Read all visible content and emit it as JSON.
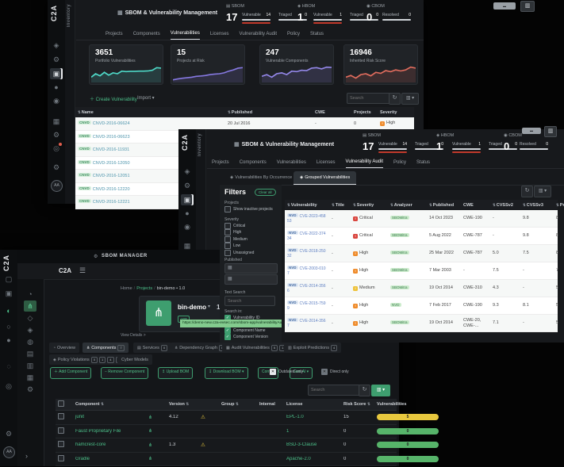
{
  "overlays": {
    "url_tooltip": "https://demo-new.c2a-evsec.com/sbom-app/vulnerabilityAudit#"
  },
  "severity_colors": {
    "Critical": "#d9453e",
    "High": "#ef8b2a",
    "Medium": "#eec23a"
  },
  "w1": {
    "logo": "C2A",
    "rail_label": "Inventory",
    "title": "SBOM & Vulnerability Management",
    "rail_icons": [
      {
        "glyph": "◈",
        "name": "shield-icon"
      },
      {
        "glyph": "⚙",
        "name": "gear-icon"
      },
      {
        "glyph": "▣",
        "name": "inventory-icon",
        "selected": true
      },
      {
        "glyph": "●",
        "name": "dot-icon"
      },
      {
        "glyph": "◉",
        "name": "lock-icon"
      },
      {
        "glyph": "▦",
        "name": "grid-icon"
      },
      {
        "glyph": "⚙",
        "name": "settings-icon"
      },
      {
        "glyph": "◎",
        "name": "pin-icon",
        "alert": true
      },
      {
        "glyph": "⚙",
        "name": "preferences-icon"
      },
      {
        "glyph": "AA",
        "name": "avatar",
        "avatar": true
      }
    ],
    "kpis": [
      {
        "name": "SBOM",
        "icon": "▤",
        "value": "17",
        "metrics": [
          {
            "label": "Vulnerable",
            "value": "14",
            "red": true
          },
          {
            "label": "Triaged",
            "value": "0"
          }
        ]
      },
      {
        "name": "HBOM",
        "icon": "◈",
        "value": "1",
        "metrics": [
          {
            "label": "Vulnerable",
            "value": "1",
            "red": true
          },
          {
            "label": "Triaged",
            "value": "0"
          }
        ]
      },
      {
        "name": "CBOM",
        "icon": "◉",
        "value": "0",
        "metrics": [
          {
            "label": "Resolved",
            "value": "0"
          }
        ]
      }
    ],
    "tabs": [
      {
        "label": "Projects"
      },
      {
        "label": "Components"
      },
      {
        "label": "Vulnerabilities",
        "active": true
      },
      {
        "label": "Licenses"
      },
      {
        "label": "Vulnerability Audit"
      },
      {
        "label": "Policy"
      },
      {
        "label": "Status"
      }
    ],
    "cards": [
      {
        "value": "3651",
        "label": "Portfolio Vulnerabilities",
        "color": "#4ed8c7",
        "spark": [
          70,
          50,
          62,
          42,
          58,
          45,
          50,
          35,
          38,
          36,
          36,
          35,
          35,
          34,
          30,
          15,
          18
        ]
      },
      {
        "value": "15",
        "label": "Projects at Risk",
        "color": "#8578e0",
        "spark": [
          85,
          80,
          76,
          73,
          70,
          65,
          63,
          60,
          55,
          52,
          50,
          45,
          35,
          28,
          18,
          15
        ]
      },
      {
        "value": "247",
        "label": "Vulnerable Components",
        "color": "#9387e8",
        "spark": [
          65,
          55,
          70,
          50,
          45,
          55,
          35,
          38,
          30,
          32,
          18,
          15,
          22,
          12,
          14
        ]
      },
      {
        "value": "16946",
        "label": "Inherited Risk Score",
        "color": "#e06c5d",
        "spark": [
          70,
          60,
          75,
          55,
          50,
          62,
          42,
          48,
          32,
          38,
          28,
          34,
          28,
          12,
          18
        ]
      }
    ],
    "toolbar": {
      "create_label": "Create Vulnerability",
      "import_label": "Import",
      "search_placeholder": "Search"
    },
    "table": {
      "headers": [
        "Name",
        "Published",
        "CWE",
        "Projects",
        "Severity"
      ],
      "rows": [
        {
          "badge": "CNVD",
          "name": "CNVD-2016-06624",
          "published": "20 Jul 2016",
          "cwe": "-",
          "projects": "0",
          "severity": "High"
        },
        {
          "badge": "CNVD",
          "name": "CNVD-2016-06623"
        },
        {
          "badge": "CNVD",
          "name": "CNVD-2016-11931"
        },
        {
          "badge": "CNVD",
          "name": "CNVD-2016-12050"
        },
        {
          "badge": "CNVD",
          "name": "CNVD-2016-12051"
        },
        {
          "badge": "CNVD",
          "name": "CNVD-2016-12220"
        },
        {
          "badge": "CNVD",
          "name": "CNVD-2016-12221"
        }
      ]
    }
  },
  "w2": {
    "logo": "C2A",
    "rail_label": "Inventory",
    "title": "SBOM & Vulnerability Management",
    "rail_icons": [
      {
        "glyph": "◈",
        "name": "shield-icon"
      },
      {
        "glyph": "⚙",
        "name": "gear-icon"
      },
      {
        "glyph": "▣",
        "name": "inventory-icon",
        "selected": true
      },
      {
        "glyph": "●",
        "name": "dot-icon"
      },
      {
        "glyph": "◉",
        "name": "lock-icon"
      },
      {
        "glyph": "▦",
        "name": "grid-icon"
      }
    ],
    "kpis": [
      {
        "name": "SBOM",
        "icon": "▤",
        "value": "17",
        "metrics": [
          {
            "label": "Vulnerable",
            "value": "14",
            "red": true
          },
          {
            "label": "Triaged",
            "value": "0"
          }
        ]
      },
      {
        "name": "HBOM",
        "icon": "◈",
        "value": "1",
        "metrics": [
          {
            "label": "Vulnerable",
            "value": "1",
            "red": true
          },
          {
            "label": "Triaged",
            "value": "0"
          }
        ]
      },
      {
        "name": "CBOM",
        "icon": "◉",
        "value": "0",
        "metrics": [
          {
            "label": "Resolved",
            "value": "0"
          }
        ]
      }
    ],
    "tabs": [
      {
        "label": "Projects"
      },
      {
        "label": "Components"
      },
      {
        "label": "Vulnerabilities"
      },
      {
        "label": "Licenses"
      },
      {
        "label": "Vulnerability Audit",
        "active": true
      },
      {
        "label": "Policy"
      },
      {
        "label": "Status"
      }
    ],
    "subtabs": [
      {
        "label": "Vulnerabilities By Occurrence"
      },
      {
        "label": "Grouped Vulnerabilities",
        "active": true
      }
    ],
    "filters": {
      "heading": "Filters",
      "clear_label": "Clear all",
      "projects_label": "Projects",
      "show_inactive": "Show inactive projects",
      "severity_label": "Severity",
      "severities": [
        "Critical",
        "High",
        "Medium",
        "Low",
        "Unassigned"
      ],
      "published_label": "Published",
      "text_search_label": "Text Search",
      "search_placeholder": "Search",
      "search_in_label": "Search in:",
      "search_in": [
        "Vulnerability ID",
        "Vulnerability Title",
        "Component Name",
        "Component Version"
      ]
    },
    "table": {
      "headers": [
        "Vulnerability",
        "Title",
        "Severity",
        "Analyzer",
        "Published",
        "CWE",
        "CVSSv2",
        "CVSSv3",
        "Projects"
      ],
      "rows": [
        {
          "badge": "NVD",
          "id": "CVE-2023-45853",
          "title": "-",
          "severity": "Critical",
          "analyzer": "SBOMitra",
          "published": "14 Oct 2023",
          "cwe": "CWE-190",
          "cvss2": "-",
          "cvss3": "9.8",
          "projects": "8"
        },
        {
          "badge": "NVD",
          "id": "CVE-2022-37434",
          "title": "-",
          "severity": "Critical",
          "analyzer": "SBOMitra",
          "published": "5 Aug 2022",
          "cwe": "CWE-787",
          "cvss2": "-",
          "cvss3": "9.8",
          "projects": "8"
        },
        {
          "badge": "NVD",
          "id": "CVE-2018-25032",
          "title": "-",
          "severity": "High",
          "analyzer": "SBOMitra",
          "published": "25 Mar 2022",
          "cwe": "CWE-787",
          "cvss2": "5.0",
          "cvss3": "7.5",
          "projects": "8"
        },
        {
          "badge": "NVD",
          "id": "CVE-2003-0107",
          "title": "-",
          "severity": "High",
          "analyzer": "SBOMitra",
          "published": "7 Mar 2003",
          "cwe": "-",
          "cvss2": "7.5",
          "cvss3": "-",
          "projects": "7"
        },
        {
          "badge": "NVD",
          "id": "CVE-2014-3566",
          "title": "-",
          "severity": "Medium",
          "analyzer": "SBOMitra",
          "published": "19 Oct 2014",
          "cwe": "CWE-310",
          "cvss2": "4.3",
          "cvss3": "-",
          "projects": "5"
        },
        {
          "badge": "NVD",
          "id": "CVE-2015-7599",
          "title": "-",
          "severity": "High",
          "analyzer": "NVD",
          "published": "7 Feb 2017",
          "cwe": "CWE-190",
          "cvss2": "9.3",
          "cvss3": "8.1",
          "projects": "5"
        },
        {
          "badge": "NVD",
          "id": "CVE-2014-3567",
          "title": "-",
          "severity": "High",
          "analyzer": "SBOMitra",
          "published": "19 Oct 2014",
          "cwe": "CWE-20, CWE-...",
          "cvss2": "7.1",
          "cvss3": "-",
          "projects": "5"
        }
      ]
    }
  },
  "w3": {
    "logo": "C2A",
    "window_title": "SBOM MANAGER",
    "outer_rail_icons": [
      {
        "glyph": "▢",
        "name": "module-icon"
      },
      {
        "glyph": "▣",
        "name": "inventory-icon"
      },
      {
        "glyph": "◐",
        "name": "shield-icon",
        "green": true
      },
      {
        "glyph": "○",
        "name": "gear-icon"
      },
      {
        "glyph": "●",
        "name": "dot-icon"
      },
      {
        "glyph": "◌",
        "name": "circle-icon"
      },
      {
        "glyph": "◎",
        "name": "pin-icon"
      },
      {
        "glyph": "⚙",
        "name": "settings-icon"
      },
      {
        "glyph": "AA",
        "name": "avatar",
        "avatar": true
      }
    ],
    "sidebar_icons": [
      {
        "glyph": "◔",
        "name": "dashboard-icon"
      },
      {
        "glyph": "⋔",
        "name": "components-icon",
        "active": true
      },
      {
        "glyph": "◇",
        "name": "services-icon"
      },
      {
        "glyph": "◈",
        "name": "security-icon"
      },
      {
        "glyph": "◍",
        "name": "network-icon"
      },
      {
        "glyph": "▤",
        "name": "report-icon"
      },
      {
        "glyph": "▥",
        "name": "document-icon"
      },
      {
        "glyph": "▦",
        "name": "table-icon"
      },
      {
        "glyph": "⚙",
        "name": "settings-icon"
      }
    ],
    "collapse_glyph": "›",
    "breadcrumb": {
      "home": "Home",
      "projects": "Projects",
      "current": "bin-demo • 1.0"
    },
    "project": {
      "name": "bin-demo",
      "version": "1.0",
      "badge": "APP",
      "view_details": "View Details >"
    },
    "tabs_row1": [
      {
        "label": "Overview",
        "glyph": "◔",
        "badges": []
      },
      {
        "label": "Components",
        "glyph": "⋔",
        "badges": [
          "7"
        ],
        "active": true
      },
      {
        "label": "Services",
        "glyph": "▤",
        "badges": [
          "0"
        ]
      },
      {
        "label": "Dependency Graph",
        "glyph": "⋔",
        "badges": [
          "0"
        ]
      },
      {
        "label": "Audit Vulnerabilities",
        "glyph": "▦",
        "badges": [
          "5",
          "1"
        ]
      },
      {
        "label": "Exploit Predictions",
        "glyph": "▥",
        "badges": [
          "4"
        ]
      }
    ],
    "tabs_row2": [
      {
        "label": "Policy Violations",
        "glyph": "◈",
        "badges": [
          "0",
          "1",
          "4",
          "0"
        ]
      },
      {
        "label": "Cyber Models",
        "glyph": "",
        "badges": []
      }
    ],
    "buttons": [
      {
        "label": "Add Component",
        "glyph": "＋",
        "name": "add-component-button"
      },
      {
        "label": "Remove Component",
        "glyph": "−",
        "name": "remove-component-button"
      },
      {
        "label": "Upload BOM",
        "glyph": "↥",
        "name": "upload-bom-button"
      },
      {
        "label": "Download BOM ▾",
        "glyph": "↧",
        "name": "download-bom-button"
      },
      {
        "label": "Correct",
        "glyph": "",
        "name": "correct-button"
      },
      {
        "label": "Gen AI ▾",
        "glyph": "",
        "name": "gen-ai-button"
      }
    ],
    "checkboxes": [
      {
        "label": "Outdated only"
      },
      {
        "label": "Direct only"
      }
    ],
    "search_placeholder": "Search",
    "table": {
      "headers": [
        "Component",
        "Version",
        "Group",
        "Internal",
        "License",
        "Risk Score",
        "Vulnerabilities"
      ],
      "rows": [
        {
          "name": "junit",
          "version": "4.12",
          "outdated": true,
          "group": "",
          "internal": "",
          "license": "EPL-1.0",
          "risk": "15",
          "vulns": "5",
          "vuln_color": "#e8c83e"
        },
        {
          "name": "Faust Proprietary File",
          "version": "",
          "outdated": false,
          "group": "",
          "internal": "",
          "license": "1",
          "risk": "0",
          "vulns": "0",
          "vuln_color": "#57b46a"
        },
        {
          "name": "hamcrest-core",
          "version": "1.3",
          "outdated": true,
          "group": "",
          "internal": "",
          "license": "BSD-3-Clause",
          "risk": "0",
          "vulns": "0",
          "vuln_color": "#57b46a"
        },
        {
          "name": "Gradle",
          "version": "",
          "outdated": false,
          "group": "",
          "internal": "",
          "license": "Apache-2.0",
          "risk": "0",
          "vulns": "0",
          "vuln_color": "#57b46a"
        }
      ]
    }
  }
}
